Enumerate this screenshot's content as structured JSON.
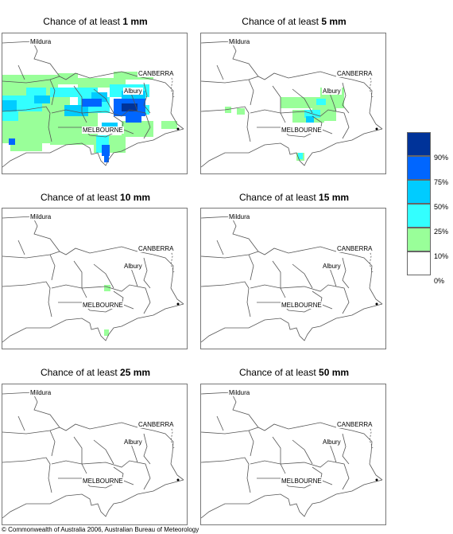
{
  "panels": [
    {
      "title_prefix": "Chance of at least ",
      "amount": "1 mm"
    },
    {
      "title_prefix": "Chance of at least ",
      "amount": "5 mm"
    },
    {
      "title_prefix": "Chance of at least ",
      "amount": "10 mm"
    },
    {
      "title_prefix": "Chance of at least ",
      "amount": "15 mm"
    },
    {
      "title_prefix": "Chance of at least ",
      "amount": "25 mm"
    },
    {
      "title_prefix": "Chance of at least ",
      "amount": "50 mm"
    }
  ],
  "places": {
    "mildura": "Mildura",
    "canberra": "CANBERRA",
    "albury": "Albury",
    "melbourne": "MELBOURNE"
  },
  "legend": {
    "labels": [
      "90%",
      "75%",
      "50%",
      "25%",
      "10%",
      "0%"
    ],
    "colors": [
      "#003399",
      "#0066ff",
      "#00ccff",
      "#33ffff",
      "#99ff99",
      "#ffffff"
    ]
  },
  "copyright": "© Commonwealth of Australia 2006, Australian Bureau of Meteorology"
}
